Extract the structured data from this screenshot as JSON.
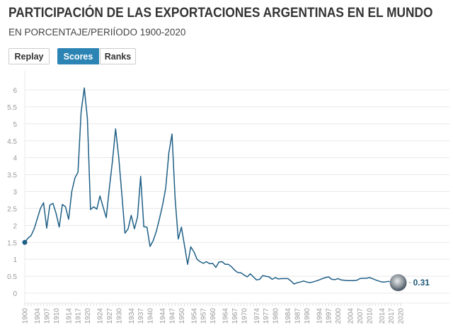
{
  "header": {
    "title": "PARTICIPACIÓN DE LAS EXPORTACIONES ARGENTINAS EN EL MUNDO",
    "subtitle": "EN PORCENTAJE/PERIÍODO 1900-2020"
  },
  "controls": {
    "replay": "Replay",
    "scores": "Scores",
    "ranks": "Ranks",
    "active": "Scores"
  },
  "colors": {
    "line": "#1f5f86",
    "accent": "#2b84b4",
    "grid": "#e8e8e8"
  },
  "chart_data": {
    "type": "line",
    "title": "PARTICIPACIÓN DE LAS EXPORTACIONES ARGENTINAS EN EL MUNDO",
    "xlabel": "",
    "ylabel": "",
    "xlim": [
      1900,
      2020
    ],
    "ylim": [
      0,
      6.3
    ],
    "grid": true,
    "y_ticks": [
      0,
      0.5,
      1,
      1.5,
      2,
      2.5,
      3,
      3.5,
      4,
      4.5,
      5,
      5.5,
      6
    ],
    "x_ticks": [
      1900,
      1904,
      1907,
      1910,
      1914,
      1917,
      1920,
      1924,
      1927,
      1930,
      1934,
      1937,
      1940,
      1944,
      1947,
      1950,
      1954,
      1957,
      1960,
      1964,
      1967,
      1970,
      1974,
      1977,
      1980,
      1984,
      1987,
      1990,
      1994,
      1997,
      2000,
      2004,
      2007,
      2010,
      2014,
      2017,
      2020
    ],
    "end_label": "0.31",
    "end_marker_icon": "banknote-portrait-icon",
    "series": [
      {
        "x": [
          1900,
          1901,
          1902,
          1903,
          1904,
          1905,
          1906,
          1907,
          1908,
          1909,
          1910,
          1911,
          1912,
          1913,
          1914,
          1915,
          1916,
          1917,
          1918,
          1919,
          1920,
          1921,
          1922,
          1923,
          1924,
          1925,
          1926,
          1927,
          1928,
          1929,
          1930,
          1931,
          1932,
          1933,
          1934,
          1935,
          1936,
          1937,
          1938,
          1939,
          1940,
          1941,
          1942,
          1943,
          1944,
          1945,
          1946,
          1947,
          1948,
          1949,
          1950,
          1951,
          1952,
          1953,
          1954,
          1955,
          1956,
          1957,
          1958,
          1959,
          1960,
          1961,
          1962,
          1963,
          1964,
          1965,
          1966,
          1967,
          1968,
          1969,
          1970,
          1971,
          1972,
          1973,
          1974,
          1975,
          1976,
          1977,
          1978,
          1979,
          1980,
          1981,
          1982,
          1983,
          1984,
          1985,
          1986,
          1987,
          1988,
          1989,
          1990,
          1991,
          1992,
          1993,
          1994,
          1995,
          1996,
          1997,
          1998,
          1999,
          2000,
          2001,
          2002,
          2003,
          2004,
          2005,
          2006,
          2007,
          2008,
          2009,
          2010,
          2011,
          2012,
          2013,
          2014,
          2015,
          2016,
          2017,
          2018,
          2019
        ],
        "y": [
          1.5,
          1.62,
          1.7,
          1.9,
          2.2,
          2.5,
          2.67,
          1.92,
          2.6,
          2.65,
          2.35,
          1.95,
          2.62,
          2.55,
          2.18,
          3.0,
          3.4,
          3.57,
          5.35,
          6.06,
          5.15,
          2.47,
          2.55,
          2.48,
          2.87,
          2.55,
          2.23,
          3.1,
          3.9,
          4.85,
          4.0,
          2.9,
          1.77,
          1.9,
          2.3,
          1.9,
          2.25,
          3.45,
          1.96,
          1.95,
          1.38,
          1.55,
          1.82,
          2.2,
          2.6,
          3.1,
          4.15,
          4.7,
          2.8,
          1.6,
          1.95,
          1.4,
          0.85,
          1.37,
          1.22,
          1.0,
          0.93,
          0.88,
          0.93,
          0.87,
          0.88,
          0.76,
          0.92,
          0.93,
          0.85,
          0.85,
          0.78,
          0.68,
          0.61,
          0.6,
          0.54,
          0.48,
          0.57,
          0.48,
          0.39,
          0.41,
          0.52,
          0.5,
          0.48,
          0.41,
          0.46,
          0.42,
          0.43,
          0.43,
          0.43,
          0.36,
          0.27,
          0.31,
          0.33,
          0.36,
          0.33,
          0.31,
          0.33,
          0.36,
          0.39,
          0.43,
          0.46,
          0.48,
          0.41,
          0.4,
          0.43,
          0.39,
          0.38,
          0.37,
          0.37,
          0.37,
          0.38,
          0.43,
          0.44,
          0.44,
          0.46,
          0.43,
          0.39,
          0.36,
          0.33,
          0.33,
          0.35,
          0.33,
          0.31,
          0.31
        ]
      }
    ]
  }
}
